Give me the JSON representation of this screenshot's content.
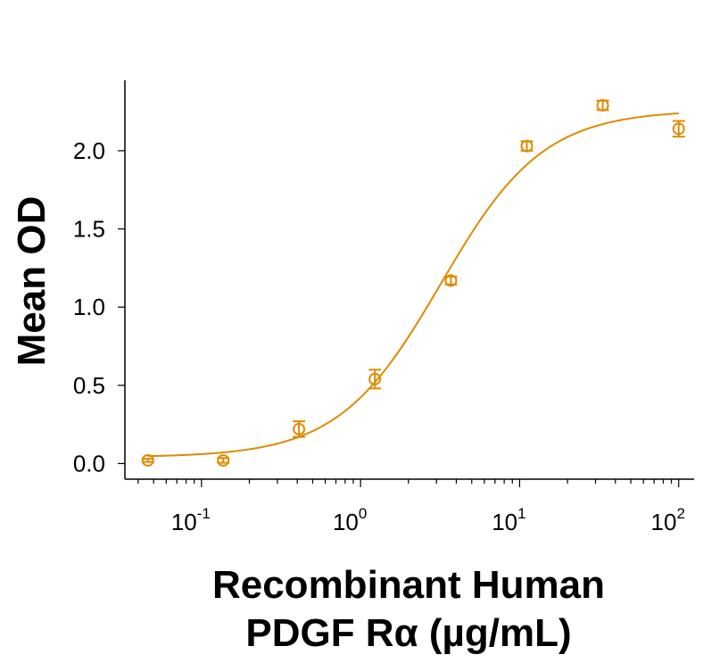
{
  "chart_data": {
    "type": "scatter",
    "title": "",
    "xlabel_line1": "Recombinant Human",
    "xlabel_line2": "PDGF Rα (µg/mL)",
    "ylabel": "Mean OD",
    "xscale": "log",
    "xlim": [
      0.033,
      125
    ],
    "ylim": [
      -0.1,
      2.45
    ],
    "xticks": [
      {
        "value": 0.1,
        "base": "10",
        "exp": "-1"
      },
      {
        "value": 1,
        "base": "10",
        "exp": "0"
      },
      {
        "value": 10,
        "base": "10",
        "exp": "1"
      },
      {
        "value": 100,
        "base": "10",
        "exp": "2"
      }
    ],
    "yticks": [
      {
        "value": 0.0,
        "label": "0.0"
      },
      {
        "value": 0.5,
        "label": "0.5"
      },
      {
        "value": 1.0,
        "label": "1.0"
      },
      {
        "value": 1.5,
        "label": "1.5"
      },
      {
        "value": 2.0,
        "label": "2.0"
      }
    ],
    "grid": false,
    "color": "#E08A00",
    "series": [
      {
        "x": [
          0.046,
          0.137,
          0.41,
          1.23,
          3.7,
          11.1,
          33.3,
          100
        ],
        "y": [
          0.02,
          0.02,
          0.22,
          0.54,
          1.17,
          2.03,
          2.29,
          2.14
        ],
        "err": [
          0.01,
          0.015,
          0.05,
          0.06,
          0.025,
          0.03,
          0.03,
          0.05
        ]
      }
    ],
    "fit": {
      "model": "4PL",
      "bottom": 0.04,
      "top": 2.26,
      "ec50": 3.2,
      "hill": 1.35
    }
  }
}
